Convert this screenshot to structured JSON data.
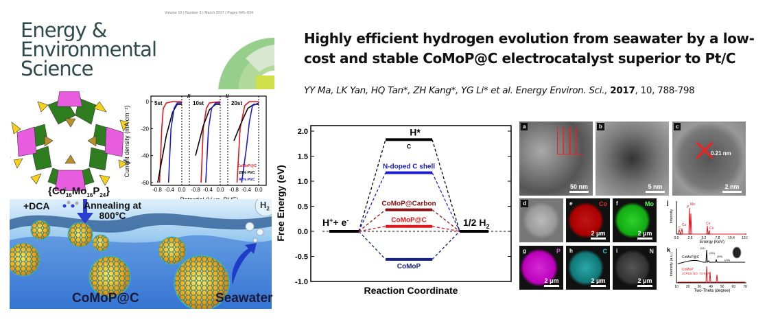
{
  "cover": {
    "meta": "Volume 10 | Number 3 | March 2017 | Pages 645–834",
    "journal_line1": "Energy &",
    "journal_line2": "Environmental",
    "journal_line3": "Science",
    "formula_prefix": "{Co",
    "formula_sub1": "16",
    "formula_mid1": "Mo",
    "formula_sub2": "16",
    "formula_mid2": "P",
    "formula_sub3": "24",
    "formula_suffix": "}",
    "dca_label": "+DCA",
    "annealing_label1": "Annealing at",
    "annealing_label2": "800°C",
    "h2_label": "H",
    "h2_sub": "2",
    "product_label": "CoMoP@C",
    "seawater_label": "Seawater"
  },
  "paper": {
    "title": "Highly efficient hydrogen evolution from seawater by a low-cost and stable CoMoP@C electrocatalyst superior to Pt/C",
    "authors": "YY Ma, LK Yan, HQ Tan*, ZH Kang*, YG Li* et al. Energy Environ. Sci.,",
    "year": "2017",
    "citation": ", 10, 788-798"
  },
  "micrographs": {
    "panels": [
      {
        "label": "a",
        "scale": "50 nm"
      },
      {
        "label": "b",
        "scale": "5 nm"
      },
      {
        "label": "c",
        "scale": "2 nm",
        "annotation": "0.21 nm"
      },
      {
        "label": "d",
        "scale": ""
      },
      {
        "label": "e",
        "element": "Co",
        "scale": "2 μm"
      },
      {
        "label": "f",
        "element": "Mo",
        "scale": "2 μm"
      },
      {
        "label": "g",
        "element": "P",
        "scale": "2 μm"
      },
      {
        "label": "h",
        "element": "C",
        "scale": "2 μm"
      },
      {
        "label": "i",
        "element": "N",
        "scale": "2 μm"
      }
    ],
    "eds": {
      "label": "j",
      "ylabel": "Intensity",
      "xlabel": "Energy (KeV)",
      "ticks": [
        "0.0",
        "2.6",
        "5.2",
        "7.8",
        "10.4",
        "13.0"
      ],
      "peaks": [
        "C",
        "Co",
        "P",
        "Mo",
        "Co",
        "Co"
      ]
    },
    "xrd": {
      "label": "k",
      "ylabel": "Intensity (a.u.)",
      "xlabel": "Two-Theta (degree)",
      "ticks": [
        "10",
        "20",
        "30",
        "40",
        "50",
        "60",
        "70"
      ],
      "sample": "CoMoP@C",
      "reference": "CoMoP",
      "reference_card": "JCPDS NO. 71-0478",
      "peak_labels": [
        "(111)",
        "(201)",
        "(300)",
        "(211)"
      ]
    }
  },
  "colors": {
    "red": "#e0161b",
    "blue": "#1b1bd0",
    "navy": "#1a237e",
    "maroon": "#8b1010",
    "black": "#000000"
  },
  "chart_data": [
    {
      "type": "line",
      "title": "",
      "xlabel": "Potential (V vs. RHE)",
      "ylabel": "Current density (mA cm⁻²)",
      "ylim": [
        -60,
        0
      ],
      "xlim": [
        -0.8,
        0.0
      ],
      "yticks": [
        "0",
        "-20",
        "-40",
        "-60"
      ],
      "xticks": [
        "-0.8",
        "-0.4",
        "0.0"
      ],
      "legend": [
        "CoMoP@C",
        "20% Pt/C",
        "40% Pt/C"
      ],
      "legend_position": "bottom-right",
      "panels": [
        {
          "name": "5st",
          "series": [
            {
              "name": "CoMoP@C",
              "x": [
                -0.72,
                -0.65,
                -0.6,
                -0.5,
                -0.3,
                0
              ],
              "y": [
                -60,
                -20,
                -5,
                -1,
                0,
                0
              ]
            },
            {
              "name": "20% Pt/C",
              "x": [
                -0.78,
                -0.5,
                -0.3,
                -0.15,
                0
              ],
              "y": [
                -60,
                -25,
                -8,
                -2,
                -2
              ]
            },
            {
              "name": "40% Pt/C",
              "x": [
                -0.43,
                -0.35,
                -0.25,
                -0.15,
                0
              ],
              "y": [
                -60,
                -20,
                -5,
                -1,
                -1
              ]
            }
          ]
        },
        {
          "name": "10st",
          "series": [
            {
              "name": "CoMoP@C",
              "x": [
                -0.62,
                -0.55,
                -0.45,
                -0.35,
                0
              ],
              "y": [
                -60,
                -20,
                -5,
                -1,
                0
              ]
            },
            {
              "name": "20% Pt/C",
              "x": [
                -0.8,
                -0.55,
                -0.35,
                -0.15,
                0
              ],
              "y": [
                -40,
                -18,
                -6,
                -2,
                -2
              ]
            },
            {
              "name": "40% Pt/C",
              "x": [
                -0.47,
                -0.38,
                -0.28,
                -0.15,
                0
              ],
              "y": [
                -60,
                -20,
                -5,
                -1,
                -1
              ]
            }
          ]
        },
        {
          "name": "20st",
          "series": [
            {
              "name": "CoMoP@C",
              "x": [
                -0.7,
                -0.6,
                -0.45,
                -0.3,
                0
              ],
              "y": [
                -60,
                -20,
                -3,
                0,
                0
              ]
            },
            {
              "name": "20% Pt/C",
              "x": [
                -0.8,
                -0.55,
                -0.35,
                -0.15,
                0
              ],
              "y": [
                -29,
                -15,
                -5,
                -2,
                -2
              ]
            },
            {
              "name": "40% Pt/C",
              "x": [
                -0.55,
                -0.4,
                -0.3,
                -0.2,
                0
              ],
              "y": [
                -60,
                -35,
                -15,
                -3,
                -1
              ]
            }
          ]
        }
      ]
    },
    {
      "type": "line",
      "title": "",
      "xlabel": "Reaction Coordinate",
      "ylabel": "Free Energy (eV)",
      "ylim": [
        -1.0,
        2.0
      ],
      "yticks": [
        "2.0",
        "1.5",
        "1.0",
        "0.5",
        "0.0",
        "-0.5",
        "-1.0"
      ],
      "initial": {
        "label": "H",
        "sup1": "+",
        "mid": "+ e",
        "sup2": "-",
        "value": 0
      },
      "final": {
        "label": "1/2 H",
        "sub": "2",
        "value": 0
      },
      "intermediate_label": "H*",
      "series": [
        {
          "name": "C",
          "value": 1.83,
          "color": "#000000",
          "label_position": "below"
        },
        {
          "name": "N-doped C shell",
          "value": 1.17,
          "color": "#1b1bd0",
          "label_position": "above"
        },
        {
          "name": "CoMoP@Carbon",
          "value": 0.43,
          "color": "#8b1010",
          "label_position": "above"
        },
        {
          "name": "CoMoP@C",
          "value": 0.1,
          "color": "#e0161b",
          "label_position": "above"
        },
        {
          "name": "CoMoP",
          "value": -0.56,
          "color": "#1a237e",
          "label_position": "below"
        }
      ]
    }
  ]
}
